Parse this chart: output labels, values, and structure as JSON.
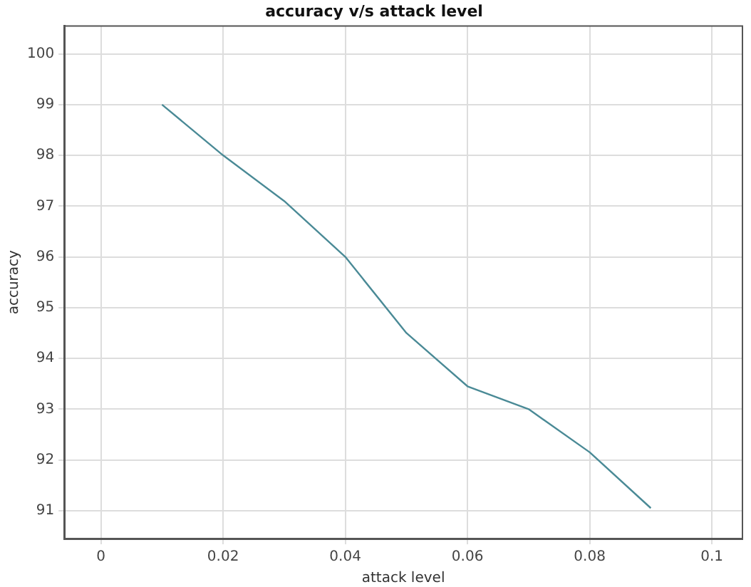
{
  "chart_data": {
    "type": "line",
    "title": "accuracy v/s attack level",
    "xlabel": "attack level",
    "ylabel": "accuracy",
    "x": [
      0.01,
      0.02,
      0.03,
      0.04,
      0.05,
      0.06,
      0.07,
      0.08,
      0.09
    ],
    "series": [
      {
        "color": "#4a8a96",
        "values": [
          99,
          98,
          97.1,
          96,
          94.5,
          93.45,
          93,
          92.15,
          91.05
        ]
      }
    ],
    "xlim": [
      -0.006,
      0.105
    ],
    "xticks": [
      0,
      0.02,
      0.04,
      0.06,
      0.08,
      {
        "value": 0.1,
        "label": "0.1"
      }
    ],
    "ylim": [
      90.45,
      100.55
    ],
    "yticks": [
      91,
      92,
      93,
      94,
      95,
      96,
      97,
      98,
      99,
      100
    ],
    "grid": true,
    "legend": false,
    "marker": "none",
    "line_style": "solid"
  }
}
